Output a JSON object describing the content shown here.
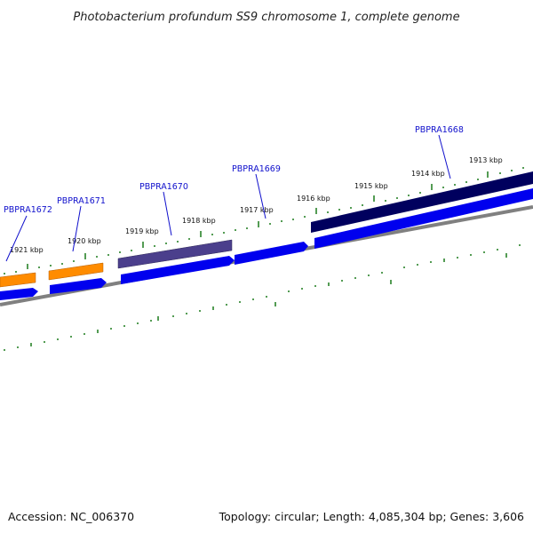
{
  "title": "Photobacterium profundum SS9 chromosome 1, complete genome",
  "footer": {
    "accession": "Accession: NC_006370",
    "summary": "Topology: circular; Length: 4,085,304 bp; Genes: 3,606"
  },
  "colors": {
    "backbone": "#808080",
    "ticks": "#1a7a1a",
    "label": "#1010cc",
    "orange_feature": "#ff8c00",
    "purple_feature": "#4b3f8c",
    "navy_feature": "#00005e",
    "blue_feature": "#0000ee"
  },
  "kbp_labels": [
    "1921 kbp",
    "1920 kbp",
    "1919 kbp",
    "1918 kbp",
    "1917 kbp",
    "1916 kbp",
    "1915 kbp",
    "1914 kbp",
    "1913 kbp"
  ],
  "gene_labels": [
    "PBPRA1672",
    "PBPRA1671",
    "PBPRA1670",
    "PBPRA1669",
    "PBPRA1668"
  ]
}
